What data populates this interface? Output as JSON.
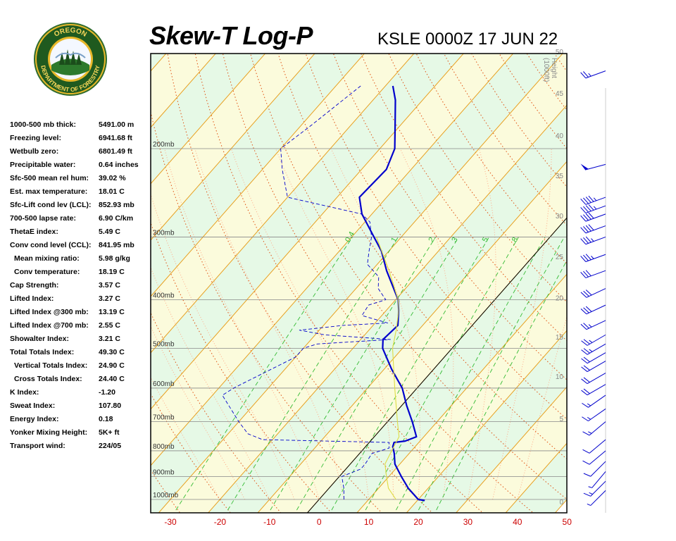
{
  "header": {
    "title": "Skew-T Log-P",
    "station_time": "KSLE 0000Z 17 JUN 22"
  },
  "logo": {
    "top_text": "OREGON",
    "bottom_text": "DEPARTMENT OF FORESTRY",
    "icon": "oregon-department-of-forestry-seal"
  },
  "indices": [
    {
      "label": "1000-500 mb thick:",
      "value": "5491.00 m",
      "indent": false
    },
    {
      "label": "Freezing level:",
      "value": "6941.68 ft",
      "indent": false
    },
    {
      "label": "Wetbulb zero:",
      "value": "6801.49 ft",
      "indent": false
    },
    {
      "label": "Precipitable water:",
      "value": "0.64 inches",
      "indent": false
    },
    {
      "label": "Sfc-500 mean rel hum:",
      "value": "39.02 %",
      "indent": false
    },
    {
      "label": "Est. max temperature:",
      "value": "18.01 C",
      "indent": false
    },
    {
      "label": "Sfc-Lift cond lev (LCL):",
      "value": "852.93 mb",
      "indent": false
    },
    {
      "label": "700-500 lapse rate:",
      "value": "6.90 C/km",
      "indent": false
    },
    {
      "label": "ThetaE index:",
      "value": "5.49 C",
      "indent": false
    },
    {
      "label": "Conv cond level (CCL):",
      "value": "841.95 mb",
      "indent": false
    },
    {
      "label": "Mean mixing ratio:",
      "value": "5.98 g/kg",
      "indent": true
    },
    {
      "label": "Conv temperature:",
      "value": "18.19 C",
      "indent": true
    },
    {
      "label": "Cap Strength:",
      "value": "3.57 C",
      "indent": false
    },
    {
      "label": "Lifted Index:",
      "value": "3.27 C",
      "indent": false
    },
    {
      "label": "Lifted Index @300 mb:",
      "value": "13.19 C",
      "indent": false
    },
    {
      "label": "Lifted Index @700 mb:",
      "value": "2.55 C",
      "indent": false
    },
    {
      "label": "Showalter Index:",
      "value": "3.21 C",
      "indent": false
    },
    {
      "label": "Total Totals Index:",
      "value": "49.30 C",
      "indent": false
    },
    {
      "label": "Vertical Totals Index:",
      "value": "24.90 C",
      "indent": true
    },
    {
      "label": "Cross Totals Index:",
      "value": "24.40 C",
      "indent": true
    },
    {
      "label": "K Index:",
      "value": "-1.20",
      "indent": false
    },
    {
      "label": "Sweat Index:",
      "value": "107.80",
      "indent": false
    },
    {
      "label": "Energy Index:",
      "value": "0.18",
      "indent": false
    },
    {
      "label": "Yonker Mixing Height:",
      "value": "5K+ ft",
      "indent": false
    },
    {
      "label": "Transport wind:",
      "value": "224/05",
      "indent": false
    }
  ],
  "chart_data": {
    "type": "line",
    "title": "Skew-T Log-P",
    "subtitle": "KSLE 0000Z 17 JUN 22",
    "x_axis": {
      "label": "",
      "ticks": [
        -30,
        -20,
        -10,
        0,
        10,
        20,
        30,
        40,
        50
      ],
      "range": [
        -30,
        50
      ],
      "unit": "C"
    },
    "pressure_levels": [
      {
        "p": 200,
        "label": "200mb"
      },
      {
        "p": 300,
        "label": "300mb"
      },
      {
        "p": 400,
        "label": "400mb"
      },
      {
        "p": 500,
        "label": "500mb"
      },
      {
        "p": 600,
        "label": "600mb"
      },
      {
        "p": 700,
        "label": "700mb"
      },
      {
        "p": 800,
        "label": "800mb"
      },
      {
        "p": 900,
        "label": "900mb"
      },
      {
        "p": 1000,
        "label": "1000mb"
      }
    ],
    "height_axis": {
      "label_line1": "Height",
      "label_line2": "(1000ft)",
      "ticks": [
        {
          "label": "50",
          "p": 128
        },
        {
          "label": "45",
          "p": 155
        },
        {
          "label": "40",
          "p": 188
        },
        {
          "label": "35",
          "p": 226
        },
        {
          "label": "30",
          "p": 272
        },
        {
          "label": "25",
          "p": 328
        },
        {
          "label": "20",
          "p": 396
        },
        {
          "label": "15",
          "p": 474
        },
        {
          "label": "10",
          "p": 568
        },
        {
          "label": "5",
          "p": 690
        },
        {
          "label": "0",
          "p": 1010
        }
      ]
    },
    "mixing_ratio_labels": [
      "0.4",
      "1",
      "2",
      "3",
      "5",
      "8"
    ],
    "isotherms_c": [
      -120,
      -110,
      -100,
      -90,
      -80,
      -70,
      -60,
      -50,
      -40,
      -30,
      -20,
      -10,
      0,
      10,
      20,
      30,
      40,
      50
    ],
    "series": [
      {
        "name": "temperature",
        "color": "#0000cc",
        "points": [
          {
            "p": 1005,
            "t": 21.5
          },
          {
            "p": 1000,
            "t": 20.0
          },
          {
            "p": 950,
            "t": 16.0
          },
          {
            "p": 900,
            "t": 12.5
          },
          {
            "p": 850,
            "t": 9.0
          },
          {
            "p": 810,
            "t": 7.0
          },
          {
            "p": 785,
            "t": 5.5
          },
          {
            "p": 770,
            "t": 5.0
          },
          {
            "p": 765,
            "t": 7.0
          },
          {
            "p": 750,
            "t": 8.5
          },
          {
            "p": 700,
            "t": 5.0
          },
          {
            "p": 650,
            "t": 1.0
          },
          {
            "p": 600,
            "t": -3.0
          },
          {
            "p": 550,
            "t": -8.5
          },
          {
            "p": 500,
            "t": -14.0
          },
          {
            "p": 480,
            "t": -15.5
          },
          {
            "p": 450,
            "t": -15.0
          },
          {
            "p": 420,
            "t": -17.5
          },
          {
            "p": 400,
            "t": -19.5
          },
          {
            "p": 350,
            "t": -27.0
          },
          {
            "p": 320,
            "t": -31.5
          },
          {
            "p": 300,
            "t": -35.5
          },
          {
            "p": 270,
            "t": -42.0
          },
          {
            "p": 250,
            "t": -45.5
          },
          {
            "p": 220,
            "t": -45.0
          },
          {
            "p": 200,
            "t": -47.0
          },
          {
            "p": 180,
            "t": -51.0
          },
          {
            "p": 160,
            "t": -55.5
          },
          {
            "p": 150,
            "t": -58.5
          }
        ]
      },
      {
        "name": "dewpoint",
        "color": "#0000cc",
        "dashed": true,
        "points": [
          {
            "p": 1000,
            "t": 5.0
          },
          {
            "p": 950,
            "t": 3.0
          },
          {
            "p": 900,
            "t": 0.5
          },
          {
            "p": 870,
            "t": 3.0
          },
          {
            "p": 850,
            "t": 3.0
          },
          {
            "p": 810,
            "t": 2.5
          },
          {
            "p": 790,
            "t": 5.0
          },
          {
            "p": 770,
            "t": 4.0
          },
          {
            "p": 760,
            "t": -22.0
          },
          {
            "p": 740,
            "t": -26.0
          },
          {
            "p": 700,
            "t": -30.0
          },
          {
            "p": 620,
            "t": -38.0
          },
          {
            "p": 600,
            "t": -37.0
          },
          {
            "p": 520,
            "t": -30.0
          },
          {
            "p": 500,
            "t": -30.0
          },
          {
            "p": 490,
            "t": -28.0
          },
          {
            "p": 480,
            "t": -14.0
          },
          {
            "p": 470,
            "t": -28.0
          },
          {
            "p": 460,
            "t": -34.0
          },
          {
            "p": 450,
            "t": -26.0
          },
          {
            "p": 445,
            "t": -17.5
          },
          {
            "p": 430,
            "t": -24.0
          },
          {
            "p": 410,
            "t": -24.5
          },
          {
            "p": 400,
            "t": -22.0
          },
          {
            "p": 380,
            "t": -25.5
          },
          {
            "p": 360,
            "t": -27.5
          },
          {
            "p": 340,
            "t": -32.0
          },
          {
            "p": 320,
            "t": -34.0
          },
          {
            "p": 300,
            "t": -36.0
          },
          {
            "p": 280,
            "t": -39.0
          },
          {
            "p": 270,
            "t": -42.0
          },
          {
            "p": 250,
            "t": -60.0
          },
          {
            "p": 220,
            "t": -66.0
          },
          {
            "p": 200,
            "t": -70.0
          },
          {
            "p": 180,
            "t": -68.0
          },
          {
            "p": 150,
            "t": -65.0
          }
        ]
      },
      {
        "name": "parcel",
        "color": "#dddd44",
        "points": [
          {
            "p": 1000,
            "t": 15.5
          },
          {
            "p": 950,
            "t": 12.0
          },
          {
            "p": 900,
            "t": 9.5
          },
          {
            "p": 850,
            "t": 7.0
          },
          {
            "p": 800,
            "t": 6.0
          },
          {
            "p": 750,
            "t": 5.0
          },
          {
            "p": 700,
            "t": 2.0
          },
          {
            "p": 600,
            "t": -4.5
          },
          {
            "p": 500,
            "t": -12.0
          },
          {
            "p": 460,
            "t": -14.5
          },
          {
            "p": 420,
            "t": -17.5
          },
          {
            "p": 400,
            "t": -19.5
          },
          {
            "p": 350,
            "t": -26.5
          },
          {
            "p": 300,
            "t": -35.0
          }
        ]
      }
    ],
    "wind_barbs": [
      {
        "p": 140,
        "dir": 250,
        "kt": 25
      },
      {
        "p": 215,
        "dir": 255,
        "kt": 50
      },
      {
        "p": 250,
        "dir": 250,
        "kt": 45
      },
      {
        "p": 260,
        "dir": 250,
        "kt": 45
      },
      {
        "p": 270,
        "dir": 250,
        "kt": 40
      },
      {
        "p": 285,
        "dir": 250,
        "kt": 40
      },
      {
        "p": 300,
        "dir": 250,
        "kt": 35
      },
      {
        "p": 325,
        "dir": 250,
        "kt": 35
      },
      {
        "p": 350,
        "dir": 250,
        "kt": 30
      },
      {
        "p": 380,
        "dir": 245,
        "kt": 30
      },
      {
        "p": 410,
        "dir": 245,
        "kt": 30
      },
      {
        "p": 440,
        "dir": 245,
        "kt": 25
      },
      {
        "p": 470,
        "dir": 240,
        "kt": 25
      },
      {
        "p": 490,
        "dir": 240,
        "kt": 25
      },
      {
        "p": 510,
        "dir": 240,
        "kt": 20
      },
      {
        "p": 530,
        "dir": 240,
        "kt": 20
      },
      {
        "p": 560,
        "dir": 240,
        "kt": 20
      },
      {
        "p": 590,
        "dir": 240,
        "kt": 20
      },
      {
        "p": 620,
        "dir": 235,
        "kt": 15
      },
      {
        "p": 660,
        "dir": 235,
        "kt": 15
      },
      {
        "p": 700,
        "dir": 230,
        "kt": 15
      },
      {
        "p": 760,
        "dir": 230,
        "kt": 10
      },
      {
        "p": 800,
        "dir": 230,
        "kt": 10
      },
      {
        "p": 840,
        "dir": 225,
        "kt": 10
      },
      {
        "p": 880,
        "dir": 220,
        "kt": 5
      },
      {
        "p": 920,
        "dir": 225,
        "kt": 15
      },
      {
        "p": 960,
        "dir": 225,
        "kt": 5
      }
    ],
    "colors": {
      "isotherm": "#e8a020",
      "dry_adiabat": "#e05010",
      "moist_adiabat": "#ffaa88",
      "mixing_ratio": "#33bb33",
      "band_light_green": "#e6f9e6",
      "band_light_yellow": "#fbfbdc",
      "x_tick_labels": "#cc0000",
      "barbs": "#0000cc"
    }
  }
}
